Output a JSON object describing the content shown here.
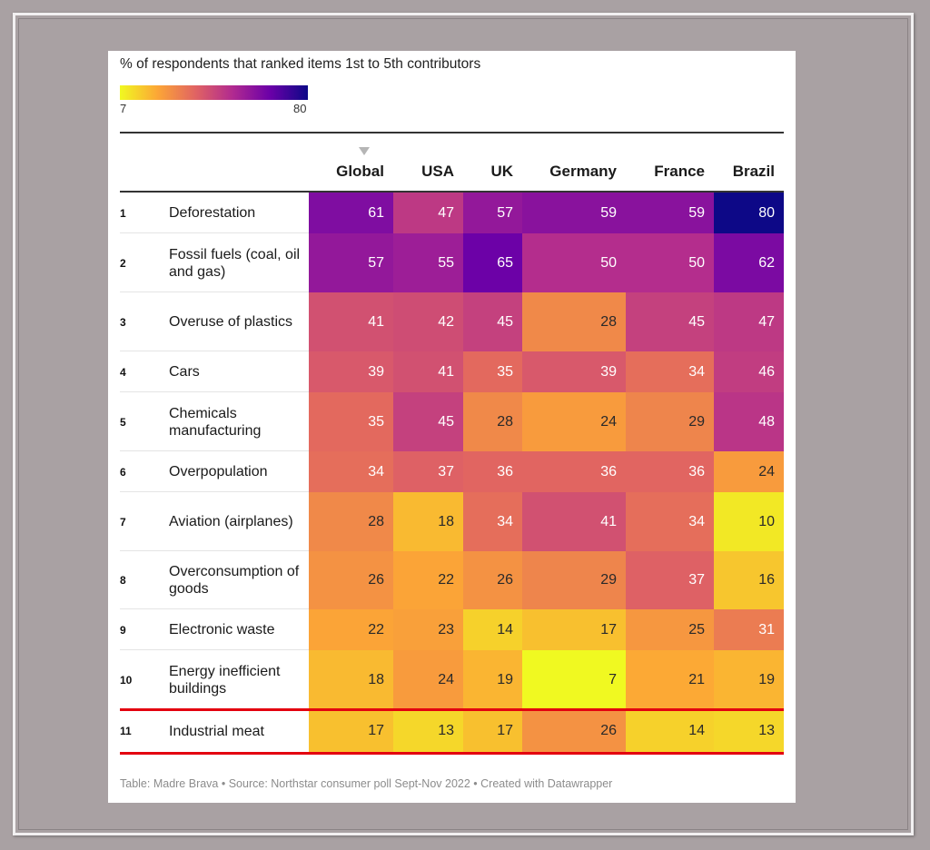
{
  "chart_data": {
    "type": "heatmap",
    "subtitle": "% of respondents that ranked items 1st to 5th contributors",
    "color_scale": {
      "min": 7,
      "max": 80,
      "min_label": "7",
      "max_label": "80",
      "stops": [
        "#f0f921",
        "#fca636",
        "#e16462",
        "#b12a90",
        "#6a00a8",
        "#0d0887"
      ]
    },
    "columns": [
      "Global",
      "USA",
      "UK",
      "Germany",
      "France",
      "Brazil"
    ],
    "sorted_column": "Global",
    "rows": [
      {
        "rank": "1",
        "item": "Deforestation",
        "values": [
          61,
          47,
          57,
          59,
          59,
          80
        ]
      },
      {
        "rank": "2",
        "item": "Fossil fuels (coal, oil and gas)",
        "values": [
          57,
          55,
          65,
          50,
          50,
          62
        ]
      },
      {
        "rank": "3",
        "item": "Overuse of plastics",
        "values": [
          41,
          42,
          45,
          28,
          45,
          47
        ]
      },
      {
        "rank": "4",
        "item": "Cars",
        "values": [
          39,
          41,
          35,
          39,
          34,
          46
        ]
      },
      {
        "rank": "5",
        "item": "Chemicals manufacturing",
        "values": [
          35,
          45,
          28,
          24,
          29,
          48
        ]
      },
      {
        "rank": "6",
        "item": "Overpopulation",
        "values": [
          34,
          37,
          36,
          36,
          36,
          24
        ]
      },
      {
        "rank": "7",
        "item": "Aviation (airplanes)",
        "values": [
          28,
          18,
          34,
          41,
          34,
          10
        ]
      },
      {
        "rank": "8",
        "item": "Overconsumption of goods",
        "values": [
          26,
          22,
          26,
          29,
          37,
          16
        ]
      },
      {
        "rank": "9",
        "item": "Electronic waste",
        "values": [
          22,
          23,
          14,
          17,
          25,
          31
        ]
      },
      {
        "rank": "10",
        "item": "Energy inefficient buildings",
        "values": [
          18,
          24,
          19,
          7,
          21,
          19
        ]
      },
      {
        "rank": "11",
        "item": "Industrial meat",
        "values": [
          17,
          13,
          17,
          26,
          14,
          13
        ],
        "highlighted": true
      }
    ],
    "highlight_color": "#e3000f",
    "footer": "Table: Madre Brava • Source: Northstar consumer poll Sept-Nov 2022 • Created with Datawrapper"
  }
}
